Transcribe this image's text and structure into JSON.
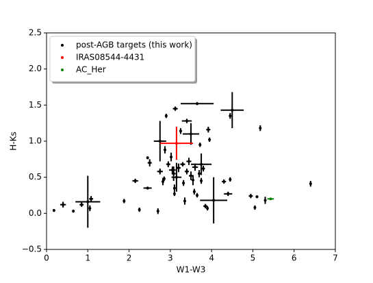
{
  "chart_data": {
    "type": "scatter",
    "x_label": "W1-W3",
    "y_label": "H-Ks",
    "xlim": [
      0,
      7
    ],
    "ylim": [
      -0.5,
      2.5
    ],
    "xticks": [
      0,
      1,
      2,
      3,
      4,
      5,
      6,
      7
    ],
    "yticks": [
      {
        "value": -0.5,
        "label": "−0.5"
      },
      {
        "value": 0,
        "label": "0.0"
      },
      0.5,
      {
        "value": 1,
        "label": "1.0"
      },
      1.5,
      {
        "value": 2,
        "label": "2.0"
      },
      2.5
    ],
    "legend": "upper left",
    "series": [
      {
        "name": "post-AGB targets (this work)",
        "color": "#000000",
        "x": [
          1.0,
          4.05,
          4.5,
          3.65,
          2.75,
          3.5,
          3.75,
          3.4,
          3.15,
          0.18,
          0.4,
          0.65,
          0.85,
          1.08,
          1.05,
          1.88,
          2.15,
          2.25,
          2.45,
          2.5,
          2.45,
          2.7,
          2.75,
          2.82,
          2.85,
          2.87,
          2.9,
          2.95,
          3.02,
          3.05,
          3.08,
          3.1,
          3.12,
          3.1,
          3.2,
          3.25,
          3.3,
          3.32,
          3.35,
          3.4,
          3.45,
          3.5,
          3.55,
          3.58,
          3.6,
          3.65,
          3.7,
          3.72,
          3.75,
          3.8,
          3.85,
          3.9,
          3.92,
          3.95,
          4.3,
          4.4,
          4.45,
          4.45,
          4.95,
          5.05,
          5.1,
          5.18,
          5.3,
          6.4
        ],
        "y": [
          0.16,
          0.18,
          1.43,
          1.52,
          1.0,
          1.1,
          0.68,
          1.28,
          0.5,
          0.04,
          0.12,
          0.03,
          0.12,
          0.2,
          0.07,
          0.17,
          0.45,
          0.05,
          0.77,
          0.7,
          0.35,
          0.03,
          0.58,
          0.44,
          0.48,
          0.88,
          1.35,
          0.68,
          0.78,
          0.6,
          0.55,
          0.35,
          1.45,
          0.27,
          0.63,
          1.14,
          0.68,
          0.42,
          0.17,
          0.58,
          0.72,
          0.52,
          0.46,
          0.3,
          0.64,
          0.25,
          0.55,
          0.95,
          0.45,
          0.62,
          0.1,
          0.07,
          1.16,
          1.02,
          0.44,
          0.27,
          1.35,
          0.47,
          0.24,
          0.08,
          0.23,
          1.18,
          0.18,
          0.41
        ],
        "xerr": [
          0.3,
          0.33,
          0.28,
          0.4,
          0.15,
          0.2,
          0.25,
          0.12,
          0.12,
          0.02,
          0.07,
          0.02,
          0.05,
          0.05,
          0.02,
          0.02,
          0.07,
          0.02,
          0.02,
          0.05,
          0.1,
          0.02,
          0.07,
          0.03,
          0.03,
          0.03,
          0.03,
          0.05,
          0.03,
          0.08,
          0.05,
          0.03,
          0.06,
          0.02,
          0.05,
          0.03,
          0.06,
          0.03,
          0.03,
          0.05,
          0.06,
          0.05,
          0.03,
          0.03,
          0.07,
          0.02,
          0.03,
          0.03,
          0.03,
          0.04,
          0.05,
          0.02,
          0.05,
          0.03,
          0.05,
          0.1,
          0.03,
          0.02,
          0.05,
          0.02,
          0.03,
          0.02,
          0.02,
          0.02
        ],
        "yerr": [
          0.36,
          0.32,
          0.25,
          0.02,
          0.28,
          0.15,
          0.15,
          0.03,
          0.2,
          0.02,
          0.04,
          0.02,
          0.03,
          0.04,
          0.04,
          0.03,
          0.03,
          0.03,
          0.02,
          0.05,
          0.02,
          0.04,
          0.04,
          0.05,
          0.03,
          0.05,
          0.03,
          0.04,
          0.06,
          0.05,
          0.1,
          0.05,
          0.03,
          0.03,
          0.06,
          0.04,
          0.03,
          0.04,
          0.05,
          0.04,
          0.05,
          0.06,
          0.07,
          0.04,
          0.05,
          0.03,
          0.05,
          0.03,
          0.04,
          0.04,
          0.03,
          0.03,
          0.04,
          0.03,
          0.03,
          0.03,
          0.04,
          0.03,
          0.03,
          0.03,
          0.02,
          0.04,
          0.05,
          0.04
        ]
      },
      {
        "name": "IRAS08544-4431",
        "color": "#ff0000",
        "x": [
          3.15
        ],
        "y": [
          0.97
        ],
        "xerr": [
          0.4
        ],
        "yerr": [
          0.23
        ]
      },
      {
        "name": "AC_Her",
        "color": "#008000",
        "x": [
          5.43
        ],
        "y": [
          0.2
        ],
        "xerr": [
          0.08
        ],
        "yerr": [
          0.01
        ]
      }
    ]
  }
}
